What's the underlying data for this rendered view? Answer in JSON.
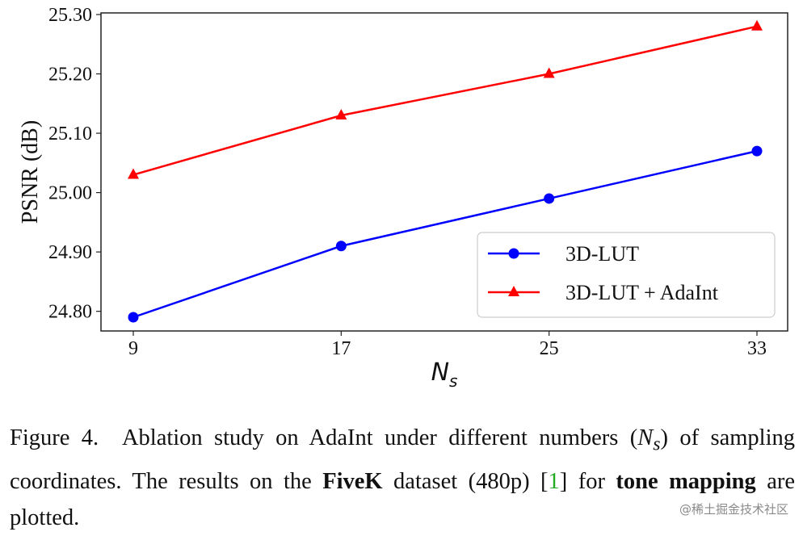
{
  "chart_data": {
    "type": "line",
    "x": [
      9,
      17,
      25,
      33
    ],
    "xticks": [
      "9",
      "17",
      "25",
      "33"
    ],
    "yticks": [
      "24.80",
      "24.90",
      "25.00",
      "25.10",
      "25.20",
      "25.30"
    ],
    "ylim": [
      24.79,
      25.3
    ],
    "xlim": [
      9,
      33
    ],
    "xlabel": "N",
    "xlabel_sub": "s",
    "ylabel": "PSNR (dB)",
    "legend_position": "lower-right",
    "series": [
      {
        "name": "3D-LUT",
        "color": "#0000ff",
        "marker": "circle",
        "values": [
          24.79,
          24.91,
          24.99,
          25.07
        ]
      },
      {
        "name": "3D-LUT + AdaInt",
        "color": "#ff0000",
        "marker": "triangle",
        "values": [
          25.03,
          25.13,
          25.2,
          25.28
        ]
      }
    ]
  },
  "caption": {
    "figure_label": "Figure 4.",
    "part1": "Ablation study on AdaInt under different numbers (",
    "ns_main": "N",
    "ns_sub": "s",
    "part2": ") of sampling coordinates. The results on the ",
    "dataset": "FiveK",
    "part3": " dataset (480p) [",
    "cite": "1",
    "part4": "] for ",
    "task": "tone mapping",
    "part5": " are plotted."
  },
  "watermark": "@稀土掘金技术社区"
}
